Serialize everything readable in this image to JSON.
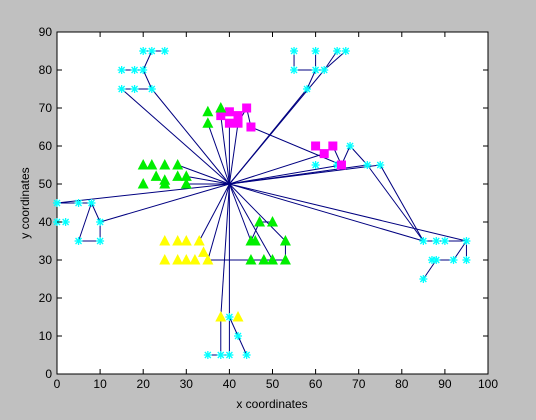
{
  "chart_data": {
    "type": "scatter",
    "title": "",
    "xlabel": "x coordinates",
    "ylabel": "y coordinates",
    "xlim": [
      0,
      100
    ],
    "ylim": [
      0,
      90
    ],
    "xticks": [
      0,
      10,
      20,
      30,
      40,
      50,
      60,
      70,
      80,
      90,
      100
    ],
    "yticks": [
      0,
      10,
      20,
      30,
      40,
      50,
      60,
      70,
      80,
      90
    ],
    "grid": false,
    "hub": {
      "x": 40,
      "y": 50
    },
    "colors": {
      "background": "#c0c0c0",
      "axes": "#ffffff",
      "links": "#000080",
      "cyan": "#00ffff",
      "green": "#00ee00",
      "yellow": "#ffff00",
      "magenta": "#ff00ff"
    },
    "series": [
      {
        "marker": "star",
        "color": "#00ffff",
        "points": [
          [
            18,
            80
          ],
          [
            20,
            85
          ],
          [
            22,
            85
          ],
          [
            25,
            85
          ],
          [
            20,
            80
          ],
          [
            15,
            80
          ],
          [
            15,
            75
          ],
          [
            18,
            75
          ],
          [
            22,
            75
          ],
          [
            55,
            85
          ],
          [
            60,
            85
          ],
          [
            62,
            80
          ],
          [
            65,
            85
          ],
          [
            67,
            85
          ],
          [
            55,
            80
          ],
          [
            60,
            80
          ],
          [
            58,
            75
          ],
          [
            0,
            45
          ],
          [
            0,
            40
          ],
          [
            2,
            40
          ],
          [
            5,
            45
          ],
          [
            8,
            45
          ],
          [
            10,
            40
          ],
          [
            5,
            35
          ],
          [
            10,
            35
          ],
          [
            60,
            55
          ],
          [
            65,
            55
          ],
          [
            68,
            60
          ],
          [
            72,
            55
          ],
          [
            75,
            55
          ],
          [
            85,
            35
          ],
          [
            88,
            35
          ],
          [
            90,
            35
          ],
          [
            95,
            35
          ],
          [
            88,
            30
          ],
          [
            87,
            30
          ],
          [
            92,
            30
          ],
          [
            95,
            30
          ],
          [
            85,
            25
          ],
          [
            35,
            5
          ],
          [
            38,
            5
          ],
          [
            40,
            5
          ],
          [
            44,
            5
          ],
          [
            40,
            15
          ],
          [
            42,
            10
          ]
        ]
      },
      {
        "marker": "square",
        "color": "#ff00ff",
        "points": [
          [
            38,
            68
          ],
          [
            40,
            69
          ],
          [
            42,
            68
          ],
          [
            44,
            70
          ],
          [
            40,
            66
          ],
          [
            42,
            66
          ],
          [
            45,
            65
          ],
          [
            60,
            60
          ],
          [
            64,
            60
          ],
          [
            62,
            58
          ],
          [
            66,
            55
          ]
        ]
      },
      {
        "marker": "triangle",
        "color": "#00ee00",
        "points": [
          [
            35,
            69
          ],
          [
            38,
            70
          ],
          [
            35,
            66
          ],
          [
            20,
            55
          ],
          [
            22,
            55
          ],
          [
            25,
            55
          ],
          [
            28,
            55
          ],
          [
            23,
            52
          ],
          [
            25,
            51
          ],
          [
            28,
            52
          ],
          [
            30,
            52
          ],
          [
            20,
            50
          ],
          [
            25,
            50
          ],
          [
            30,
            50
          ],
          [
            47,
            40
          ],
          [
            50,
            40
          ],
          [
            46,
            35
          ],
          [
            45,
            35
          ],
          [
            53,
            35
          ],
          [
            45,
            30
          ],
          [
            48,
            30
          ],
          [
            50,
            30
          ],
          [
            53,
            30
          ]
        ]
      },
      {
        "marker": "triangle",
        "color": "#ffff00",
        "points": [
          [
            25,
            35
          ],
          [
            28,
            35
          ],
          [
            30,
            35
          ],
          [
            33,
            35
          ],
          [
            25,
            30
          ],
          [
            28,
            30
          ],
          [
            30,
            30
          ],
          [
            32,
            30
          ],
          [
            34,
            32
          ],
          [
            35,
            30
          ],
          [
            38,
            15
          ],
          [
            42,
            15
          ]
        ]
      }
    ],
    "edges": [
      [
        40,
        50,
        0,
        45
      ],
      [
        40,
        50,
        10,
        40
      ],
      [
        40,
        50,
        15,
        75
      ],
      [
        40,
        50,
        22,
        75
      ],
      [
        40,
        50,
        58,
        75
      ],
      [
        40,
        50,
        62,
        80
      ],
      [
        40,
        50,
        40,
        66
      ],
      [
        40,
        50,
        42,
        66
      ],
      [
        40,
        50,
        38,
        68
      ],
      [
        40,
        50,
        35,
        66
      ],
      [
        40,
        50,
        30,
        52
      ],
      [
        40,
        50,
        30,
        50
      ],
      [
        40,
        50,
        28,
        55
      ],
      [
        40,
        50,
        66,
        55
      ],
      [
        40,
        50,
        72,
        55
      ],
      [
        40,
        50,
        75,
        55
      ],
      [
        40,
        50,
        85,
        35
      ],
      [
        40,
        50,
        95,
        35
      ],
      [
        40,
        50,
        62,
        58
      ],
      [
        40,
        50,
        45,
        35
      ],
      [
        40,
        50,
        53,
        35
      ],
      [
        40,
        50,
        35,
        30
      ],
      [
        40,
        50,
        38,
        15
      ],
      [
        40,
        50,
        40,
        15
      ],
      [
        40,
        50,
        50,
        30
      ],
      [
        40,
        50,
        33,
        35
      ],
      [
        0,
        45,
        5,
        45
      ],
      [
        0,
        40,
        2,
        40
      ],
      [
        5,
        45,
        8,
        45
      ],
      [
        8,
        45,
        10,
        40
      ],
      [
        8,
        45,
        5,
        35
      ],
      [
        5,
        35,
        10,
        35
      ],
      [
        10,
        35,
        10,
        40
      ],
      [
        15,
        75,
        18,
        75
      ],
      [
        18,
        75,
        22,
        75
      ],
      [
        22,
        75,
        20,
        80
      ],
      [
        20,
        80,
        18,
        80
      ],
      [
        18,
        80,
        15,
        80
      ],
      [
        20,
        80,
        22,
        85
      ],
      [
        20,
        85,
        22,
        85
      ],
      [
        22,
        85,
        25,
        85
      ],
      [
        55,
        85,
        55,
        80
      ],
      [
        55,
        80,
        60,
        80
      ],
      [
        60,
        80,
        62,
        80
      ],
      [
        62,
        80,
        65,
        85
      ],
      [
        62,
        80,
        67,
        85
      ],
      [
        60,
        80,
        60,
        85
      ],
      [
        58,
        75,
        60,
        80
      ],
      [
        42,
        66,
        44,
        70
      ],
      [
        44,
        70,
        45,
        65
      ],
      [
        45,
        65,
        66,
        55
      ],
      [
        66,
        55,
        64,
        60
      ],
      [
        64,
        60,
        62,
        58
      ],
      [
        60,
        60,
        62,
        58
      ],
      [
        66,
        55,
        68,
        60
      ],
      [
        68,
        60,
        72,
        55
      ],
      [
        75,
        55,
        85,
        35
      ],
      [
        72,
        55,
        85,
        35
      ],
      [
        85,
        35,
        88,
        35
      ],
      [
        88,
        35,
        90,
        35
      ],
      [
        90,
        35,
        95,
        35
      ],
      [
        95,
        35,
        95,
        30
      ],
      [
        95,
        35,
        92,
        30
      ],
      [
        92,
        30,
        88,
        30
      ],
      [
        85,
        25,
        88,
        30
      ],
      [
        45,
        35,
        47,
        40
      ],
      [
        47,
        40,
        50,
        40
      ],
      [
        45,
        30,
        53,
        30
      ],
      [
        53,
        30,
        53,
        35
      ],
      [
        35,
        30,
        45,
        30
      ],
      [
        35,
        5,
        38,
        5
      ],
      [
        38,
        5,
        40,
        5
      ],
      [
        40,
        5,
        40,
        15
      ],
      [
        40,
        15,
        42,
        10
      ],
      [
        42,
        10,
        44,
        5
      ],
      [
        38,
        15,
        38,
        5
      ]
    ]
  }
}
